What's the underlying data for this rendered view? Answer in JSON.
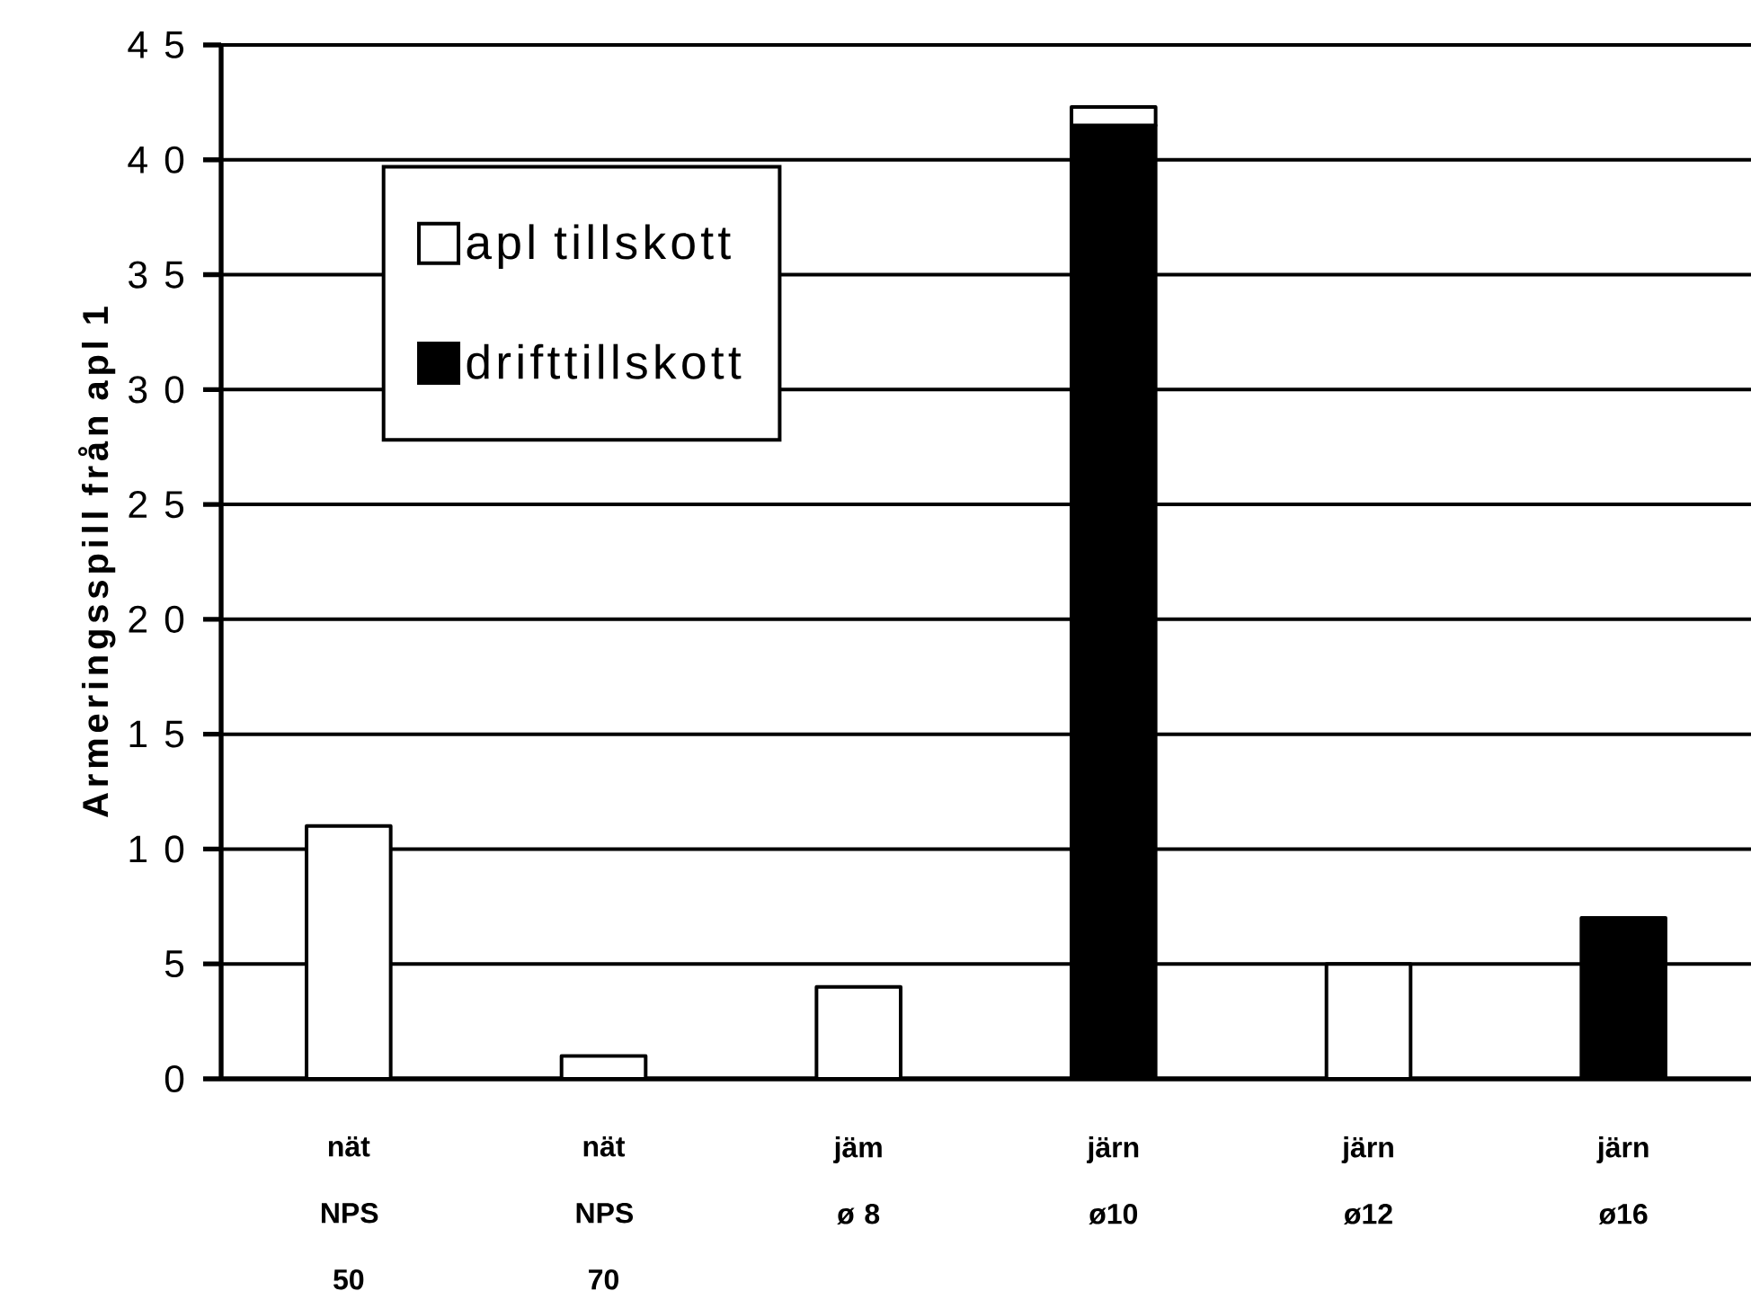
{
  "chart_data": {
    "type": "bar",
    "stacked": true,
    "ylabel": "Armeringsspill från apl 1",
    "categories": [
      "nät NPS 50",
      "nät NPS 70",
      "jäm ø 8",
      "järn ø10",
      "järn ø12",
      "järn ø16"
    ],
    "series": [
      {
        "name": "drifttillskott",
        "color": "#000000",
        "values": [
          null,
          null,
          null,
          41.5,
          null,
          7
        ]
      },
      {
        "name": "apl tillskott",
        "color": "#ffffff",
        "values": [
          11,
          1,
          4,
          0.8,
          5,
          null
        ]
      }
    ],
    "ylim": [
      0,
      45
    ],
    "yticks": [
      0,
      5,
      10,
      15,
      20,
      25,
      30,
      35,
      40,
      45
    ],
    "grid": "y",
    "legend": "top left"
  }
}
